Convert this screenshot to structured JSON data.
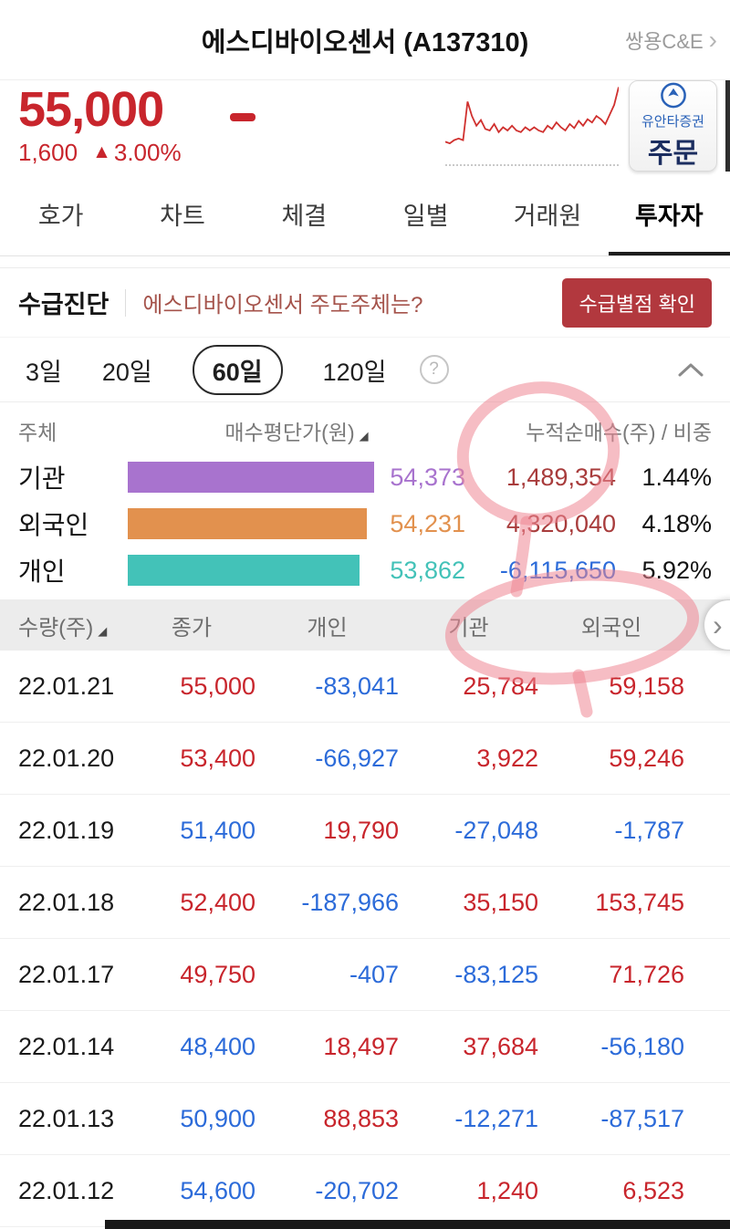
{
  "colors": {
    "up": "#c8252c",
    "down": "#2c6bd9",
    "net_up": "#a83c3c",
    "button": "#b2383e"
  },
  "header": {
    "title": "에스디바이오센서 (A137310)",
    "related_link": "쌍용C&E"
  },
  "price": {
    "current": "55,000",
    "change": "1,600",
    "change_arrow": "▲",
    "change_pct": "3.00%",
    "order_broker": "유안타증권",
    "order_label": "주문",
    "sparkline": [
      28,
      26,
      30,
      32,
      30,
      78,
      60,
      48,
      55,
      44,
      42,
      50,
      40,
      46,
      42,
      48,
      42,
      40,
      46,
      42,
      46,
      42,
      40,
      48,
      44,
      52,
      46,
      42,
      50,
      45,
      54,
      48,
      56,
      52,
      60,
      56,
      50,
      62,
      74,
      96
    ]
  },
  "tabs": [
    {
      "id": "orderbook",
      "label": "호가",
      "active": false
    },
    {
      "id": "chart",
      "label": "차트",
      "active": false
    },
    {
      "id": "ticks",
      "label": "체결",
      "active": false
    },
    {
      "id": "daily",
      "label": "일별",
      "active": false
    },
    {
      "id": "brokers",
      "label": "거래원",
      "active": false
    },
    {
      "id": "investors",
      "label": "투자자",
      "active": true
    }
  ],
  "diagnosis": {
    "title": "수급진단",
    "question": "에스디바이오센서 주도주체는?",
    "button": "수급별점 확인"
  },
  "period": {
    "options": [
      {
        "id": "3d",
        "label": "3일",
        "selected": false
      },
      {
        "id": "20d",
        "label": "20일",
        "selected": false
      },
      {
        "id": "60d",
        "label": "60일",
        "selected": true
      },
      {
        "id": "120d",
        "label": "120일",
        "selected": false
      }
    ],
    "help": "?"
  },
  "summary": {
    "col_subject": "주체",
    "col_avg": "매수평단가(원)",
    "col_net": "누적순매수(주) / 비중",
    "rows": [
      {
        "id": "institution",
        "name": "기관",
        "avg": "54,373",
        "net": "1,489,354",
        "ratio": "1.44%",
        "color": "#a873ce",
        "bar_pct": 100
      },
      {
        "id": "foreigner",
        "name": "외국인",
        "avg": "54,231",
        "net": "4,320,040",
        "ratio": "4.18%",
        "color": "#e2914e",
        "bar_pct": 97
      },
      {
        "id": "individual",
        "name": "개인",
        "avg": "53,862",
        "net": "-6,115,650",
        "ratio": "5.92%",
        "color": "#43c2b8",
        "bar_pct": 94
      }
    ]
  },
  "table": {
    "headers": [
      "수량(주)",
      "종가",
      "개인",
      "기관",
      "외국인"
    ],
    "rows": [
      {
        "date": "22.01.21",
        "close": "55,000",
        "close_dir": "up",
        "individual": "-83,041",
        "institution": "25,784",
        "foreigner": "59,158"
      },
      {
        "date": "22.01.20",
        "close": "53,400",
        "close_dir": "up",
        "individual": "-66,927",
        "institution": "3,922",
        "foreigner": "59,246"
      },
      {
        "date": "22.01.19",
        "close": "51,400",
        "close_dir": "down",
        "individual": "19,790",
        "institution": "-27,048",
        "foreigner": "-1,787"
      },
      {
        "date": "22.01.18",
        "close": "52,400",
        "close_dir": "up",
        "individual": "-187,966",
        "institution": "35,150",
        "foreigner": "153,745"
      },
      {
        "date": "22.01.17",
        "close": "49,750",
        "close_dir": "up",
        "individual": "-407",
        "institution": "-83,125",
        "foreigner": "71,726"
      },
      {
        "date": "22.01.14",
        "close": "48,400",
        "close_dir": "down",
        "individual": "18,497",
        "institution": "37,684",
        "foreigner": "-56,180"
      },
      {
        "date": "22.01.13",
        "close": "50,900",
        "close_dir": "down",
        "individual": "88,853",
        "institution": "-12,271",
        "foreigner": "-87,517"
      },
      {
        "date": "22.01.12",
        "close": "54,600",
        "close_dir": "down",
        "individual": "-20,702",
        "institution": "1,240",
        "foreigner": "6,523"
      }
    ]
  }
}
